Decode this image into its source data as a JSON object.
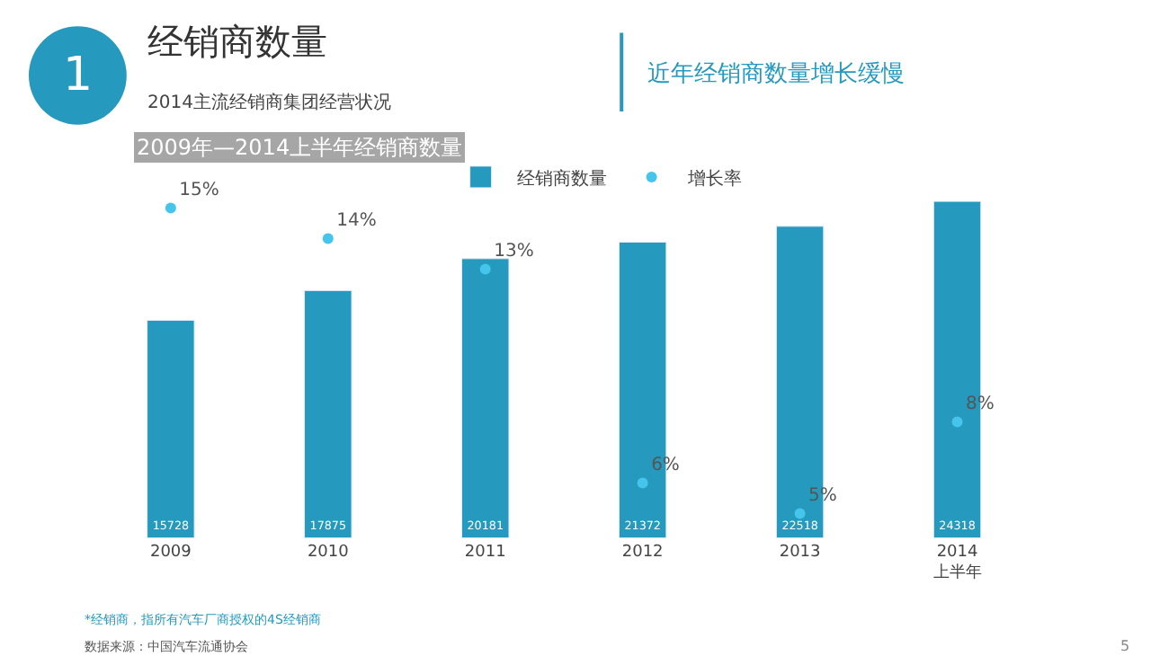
{
  "chart_data": {
    "type": "bar",
    "title": "经销商数量",
    "subtitle": "2014主流经销商集团经营状况",
    "categories": [
      "2009",
      "2010",
      "2011",
      "2012",
      "2013",
      "2014\n上半年"
    ],
    "series": [
      {
        "name": "经销商数量",
        "color": "#2599be",
        "values": [
          15728,
          17875,
          20181,
          21372,
          22518,
          24318
        ]
      },
      {
        "name": "增长率",
        "type": "scatter",
        "axis": "y2",
        "color": "#45c4ec",
        "values": [
          15,
          14,
          13,
          6,
          5,
          8
        ],
        "value_labels": [
          "15%",
          "14%",
          "13%",
          "6%",
          "5%",
          "8%"
        ]
      }
    ],
    "data_labels": true,
    "tick_labels": "x",
    "legend": "top",
    "marker": "circle",
    "annotations": [
      "1",
      "近年经销商数量增长缓慢",
      "2009年—2014上半年经销商数量",
      "*经销商，指所有汽车厂商授权的4S经销商",
      "数据来源：中国汽车流通协会",
      "5"
    ]
  }
}
